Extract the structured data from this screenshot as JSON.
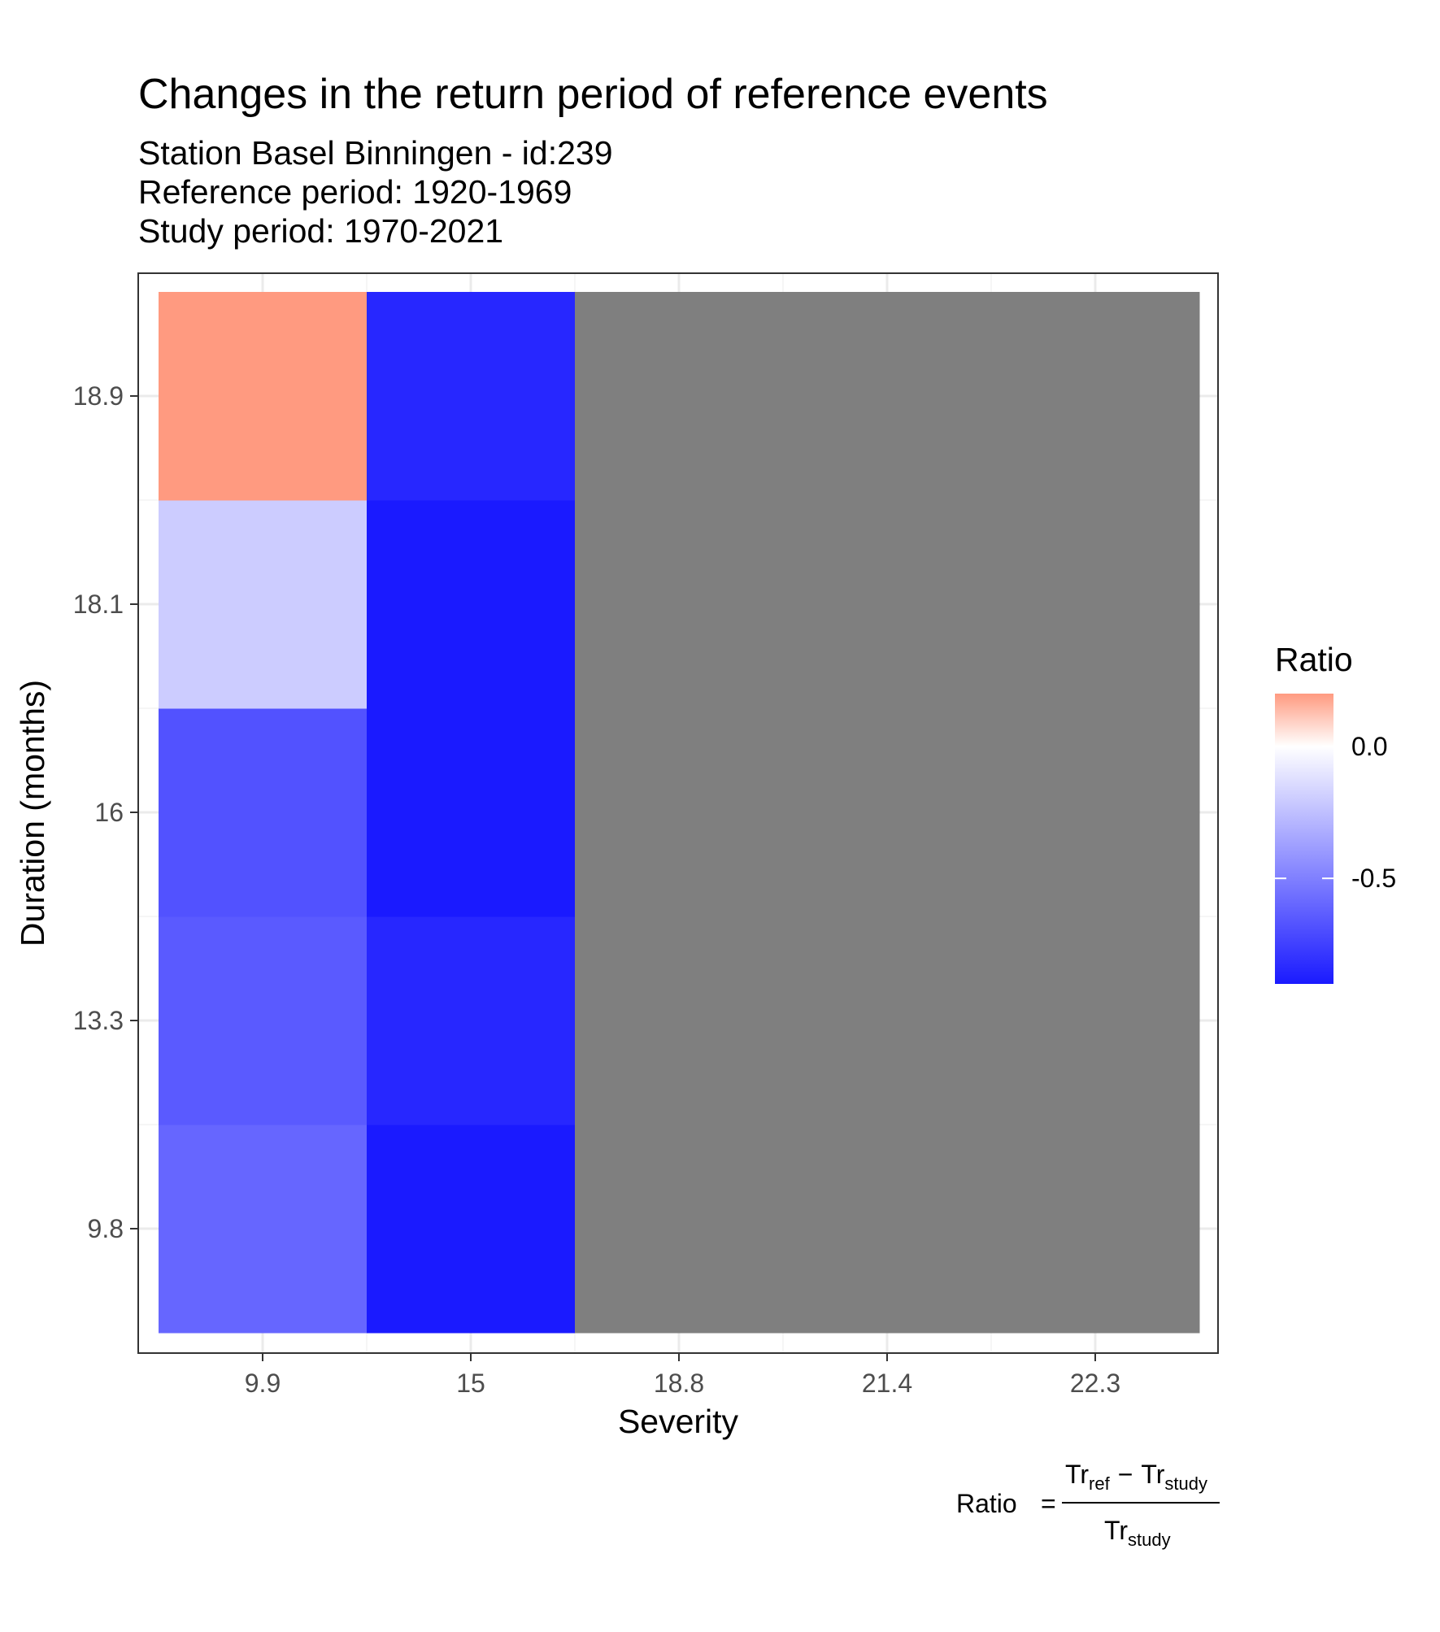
{
  "chart_data": {
    "type": "heatmap",
    "title": "Changes in the return period of reference events",
    "subtitle_lines": [
      "Station Basel Binningen - id:239",
      "Reference period: 1920-1969",
      "Study period: 1970-2021"
    ],
    "xlabel": "Severity",
    "ylabel": "Duration (months)",
    "x_categories": [
      "9.9",
      "15",
      "18.8",
      "21.4",
      "22.3"
    ],
    "y_categories": [
      "9.8",
      "13.3",
      "16",
      "18.1",
      "18.9"
    ],
    "values": [
      [
        -0.6,
        -0.9,
        null,
        null,
        null
      ],
      [
        -0.65,
        -0.85,
        null,
        null,
        null
      ],
      [
        -0.68,
        -0.95,
        null,
        null,
        null
      ],
      [
        -0.2,
        -0.95,
        null,
        null,
        null
      ],
      [
        0.2,
        -0.85,
        null,
        null,
        null
      ]
    ],
    "na_color": "#7f7f7f",
    "legend": {
      "title": "Ratio",
      "placement": "right",
      "range": [
        -0.9,
        0.2
      ],
      "ticks": [
        "0.0",
        "-0.5"
      ],
      "colors": {
        "low": "#1a1aff",
        "mid": "#ffffff",
        "high": "#ff9a80"
      }
    },
    "grid": true
  },
  "caption": {
    "lhs": "Ratio",
    "equals": "=",
    "num_a": "Tr",
    "num_a_sub": "ref",
    "minus": "−",
    "num_b": "Tr",
    "num_b_sub": "study",
    "den": "Tr",
    "den_sub": "study"
  }
}
